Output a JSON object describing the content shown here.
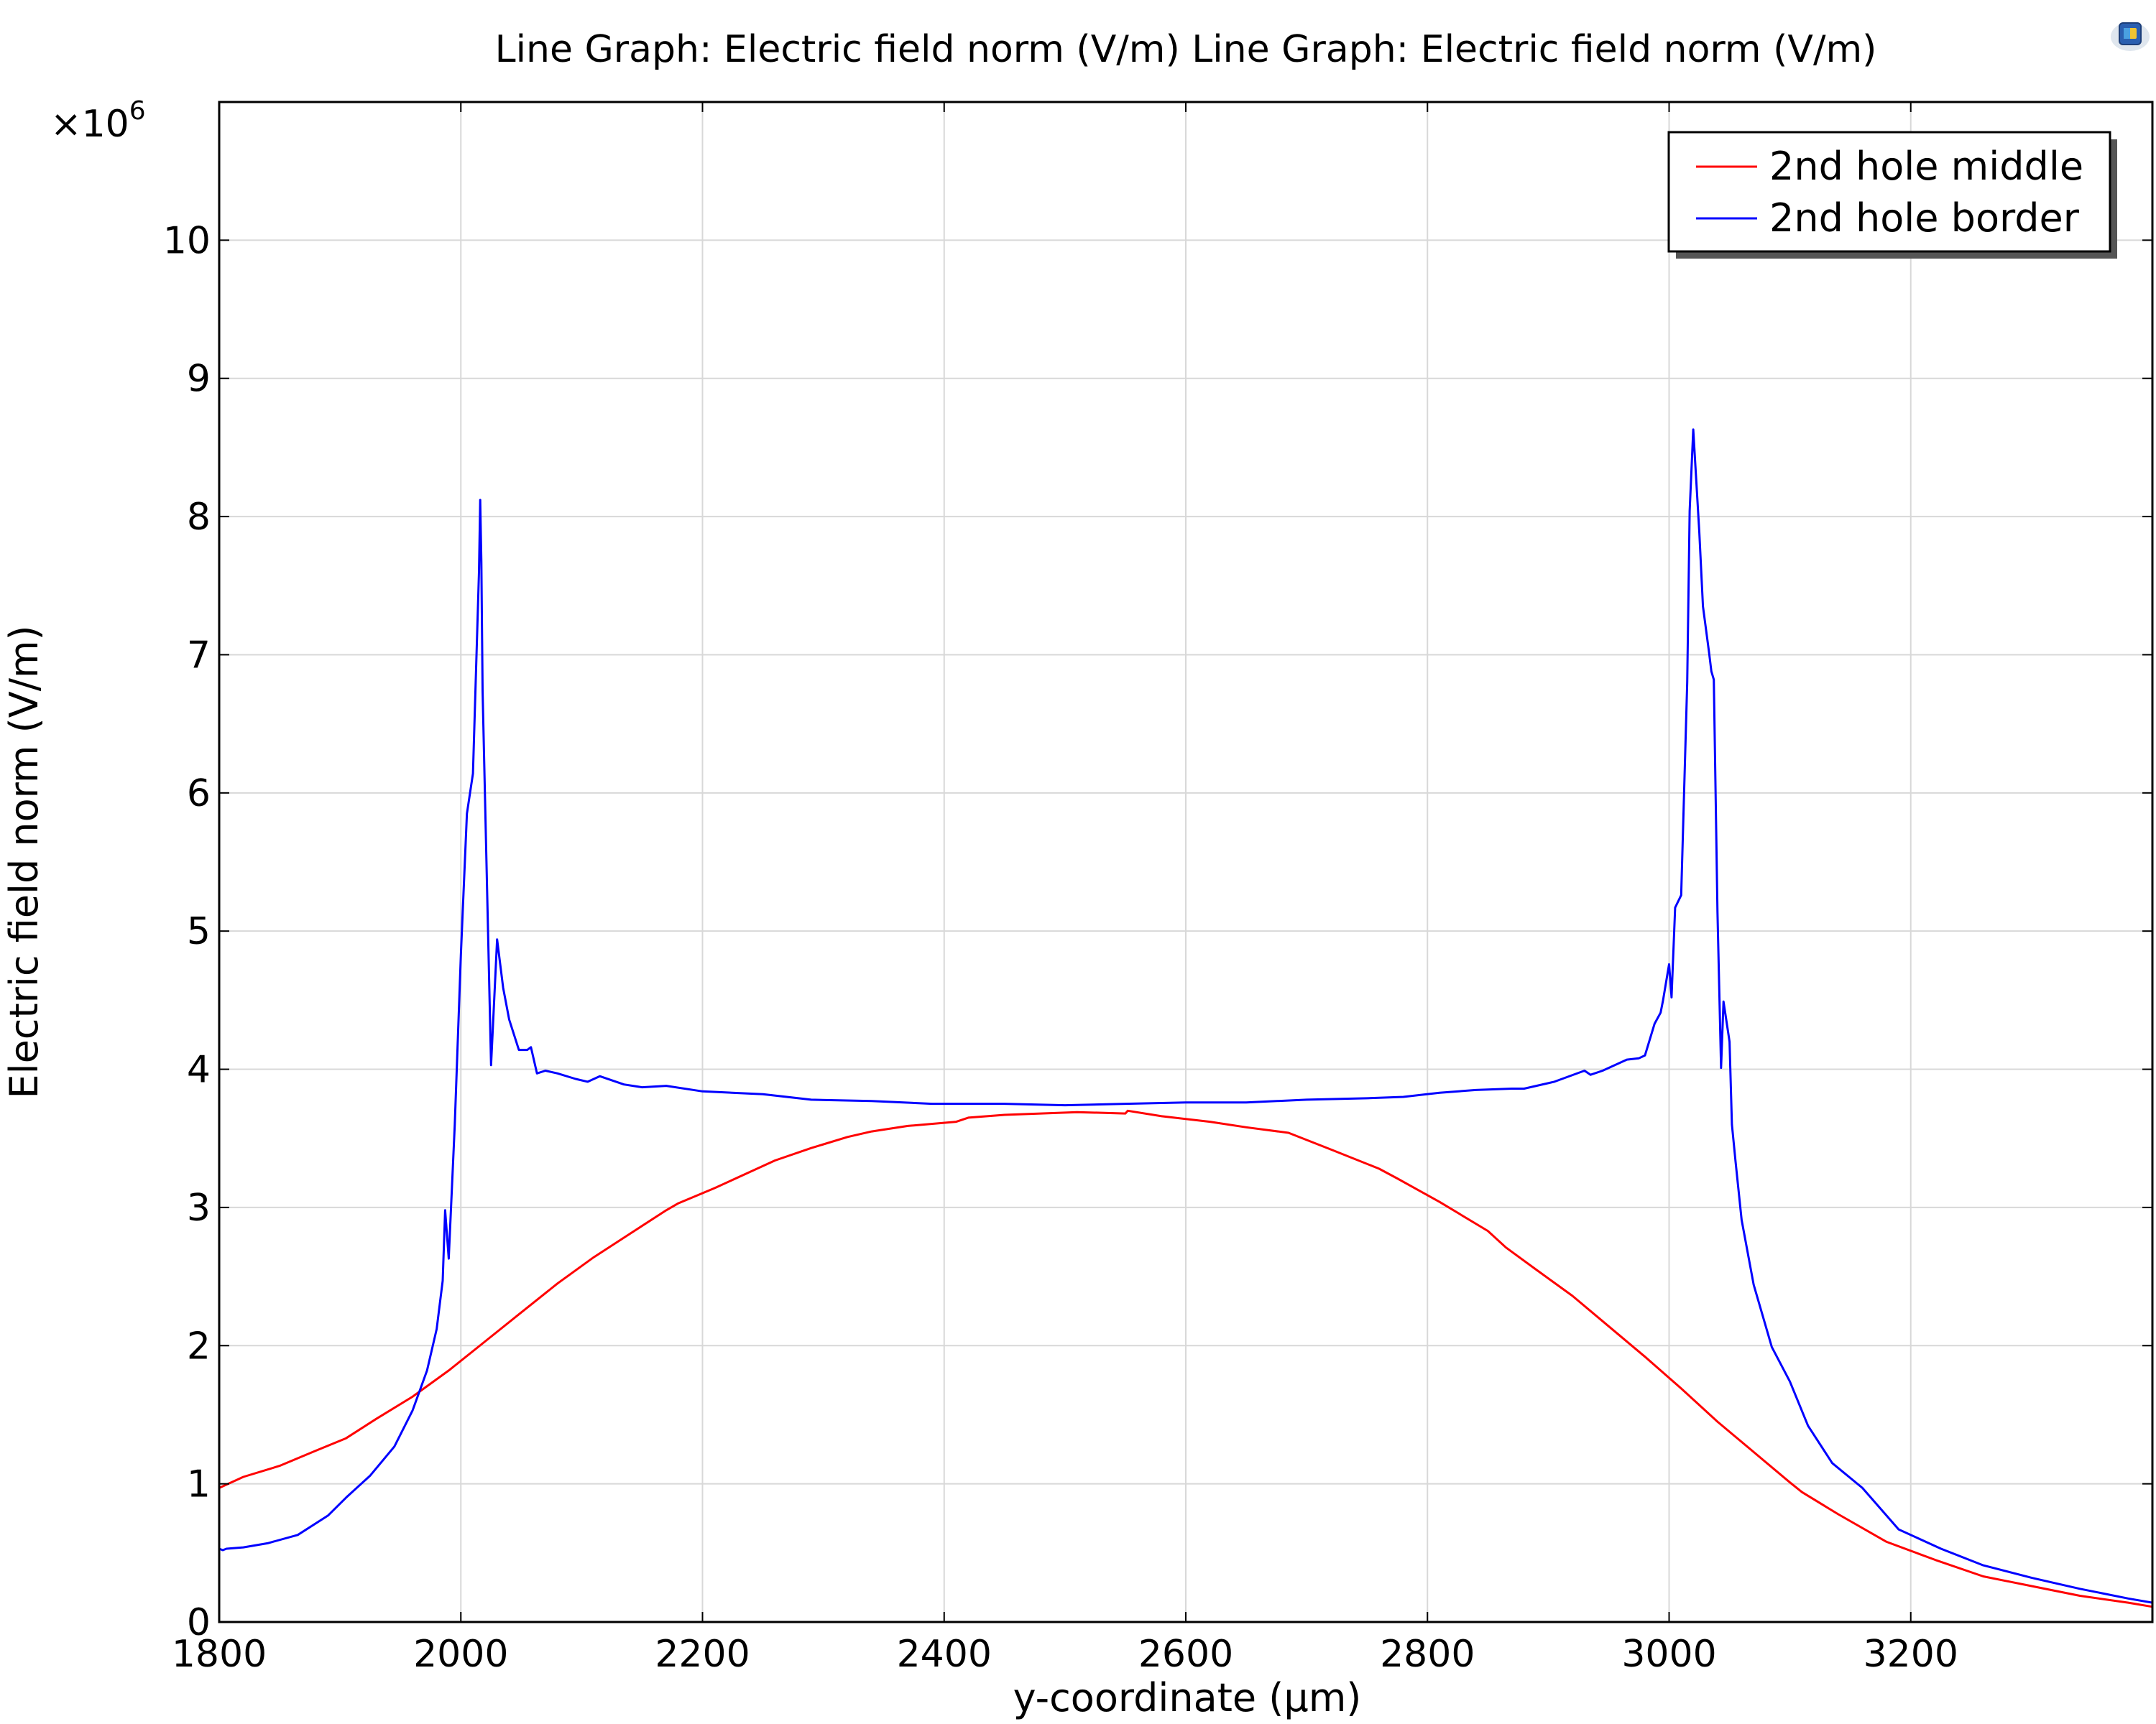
{
  "chart_data": {
    "type": "line",
    "title": "Line Graph: Electric field norm (V/m)  Line Graph: Electric field norm (V/m)",
    "xlabel": "y-coordinate (µm)",
    "ylabel": "Electric field norm (V/m)",
    "y_multiplier": "×10",
    "y_multiplier_exponent": "6",
    "xlim": [
      1800,
      3400
    ],
    "ylim": [
      0,
      11
    ],
    "x_ticks": [
      "1800",
      "2000",
      "2200",
      "2400",
      "2600",
      "2800",
      "3000",
      "3200"
    ],
    "y_ticks": [
      "0",
      "1",
      "2",
      "3",
      "4",
      "5",
      "6",
      "7",
      "8",
      "9",
      "10"
    ],
    "grid": true,
    "legend_position": "top-right",
    "series": [
      {
        "name": "2nd hole middle",
        "color": "#ff0000",
        "x": [
          1800,
          1820,
          1850,
          1880,
          1905,
          1930,
          1960,
          1990,
          2020,
          2050,
          2080,
          2110,
          2140,
          2170,
          2180,
          2210,
          2240,
          2260,
          2290,
          2320,
          2340,
          2370,
          2410,
          2420,
          2450,
          2480,
          2510,
          2550,
          2552,
          2580,
          2620,
          2650,
          2685,
          2720,
          2760,
          2775,
          2810,
          2850,
          2865,
          2890,
          2920,
          2950,
          2980,
          3010,
          3040,
          3070,
          3100,
          3110,
          3140,
          3180,
          3220,
          3260,
          3300,
          3340,
          3380,
          3400
        ],
        "y": [
          0.97,
          1.05,
          1.13,
          1.24,
          1.33,
          1.47,
          1.63,
          1.82,
          2.03,
          2.24,
          2.45,
          2.64,
          2.81,
          2.98,
          3.03,
          3.14,
          3.26,
          3.34,
          3.43,
          3.51,
          3.55,
          3.59,
          3.62,
          3.65,
          3.67,
          3.68,
          3.69,
          3.68,
          3.7,
          3.66,
          3.62,
          3.58,
          3.54,
          3.42,
          3.28,
          3.21,
          3.04,
          2.83,
          2.71,
          2.55,
          2.36,
          2.14,
          1.92,
          1.69,
          1.45,
          1.23,
          1.01,
          0.94,
          0.78,
          0.58,
          0.45,
          0.33,
          0.26,
          0.19,
          0.14,
          0.11
        ]
      },
      {
        "name": "2nd hole border",
        "color": "#0000ff",
        "x": [
          1800,
          1803,
          1806,
          1820,
          1840,
          1865,
          1890,
          1905,
          1925,
          1945,
          1960,
          1972,
          1980,
          1985,
          1987,
          1990,
          1995,
          2000,
          2005,
          2010,
          2015,
          2016,
          2017,
          2018,
          2025,
          2030,
          2035,
          2040,
          2048,
          2055,
          2058,
          2063,
          2070,
          2080,
          2095,
          2105,
          2115,
          2135,
          2150,
          2170,
          2200,
          2250,
          2290,
          2340,
          2390,
          2450,
          2500,
          2550,
          2600,
          2650,
          2700,
          2750,
          2780,
          2810,
          2840,
          2870,
          2880,
          2905,
          2930,
          2935,
          2945,
          2965,
          2975,
          2980,
          2988,
          2993,
          2995,
          3000,
          3002,
          3005,
          3010,
          3015,
          3017,
          3020,
          3025,
          3028,
          3033,
          3035,
          3037,
          3040,
          3043,
          3045,
          3050,
          3052,
          3055,
          3060,
          3070,
          3085,
          3100,
          3115,
          3135,
          3160,
          3190,
          3225,
          3260,
          3300,
          3340,
          3380,
          3400
        ],
        "y": [
          0.53,
          0.52,
          0.53,
          0.54,
          0.57,
          0.63,
          0.77,
          0.9,
          1.06,
          1.27,
          1.53,
          1.82,
          2.12,
          2.47,
          2.98,
          2.63,
          3.6,
          4.83,
          5.85,
          6.14,
          7.6,
          8.12,
          7.67,
          6.74,
          4.03,
          4.94,
          4.59,
          4.36,
          4.14,
          4.14,
          4.16,
          3.97,
          3.99,
          3.97,
          3.93,
          3.91,
          3.95,
          3.89,
          3.87,
          3.88,
          3.84,
          3.82,
          3.78,
          3.77,
          3.75,
          3.75,
          3.74,
          3.75,
          3.76,
          3.76,
          3.78,
          3.79,
          3.8,
          3.83,
          3.85,
          3.86,
          3.86,
          3.91,
          3.99,
          3.96,
          3.99,
          4.07,
          4.08,
          4.1,
          4.33,
          4.41,
          4.5,
          4.76,
          4.52,
          5.17,
          5.26,
          6.8,
          8.04,
          8.63,
          7.89,
          7.35,
          7.02,
          6.88,
          6.82,
          5.14,
          4.01,
          4.49,
          4.2,
          3.6,
          3.33,
          2.91,
          2.44,
          1.99,
          1.74,
          1.42,
          1.15,
          0.97,
          0.67,
          0.53,
          0.41,
          0.32,
          0.24,
          0.17,
          0.14
        ]
      }
    ]
  },
  "icons": {
    "app_icon": "comsol-logo-icon"
  }
}
